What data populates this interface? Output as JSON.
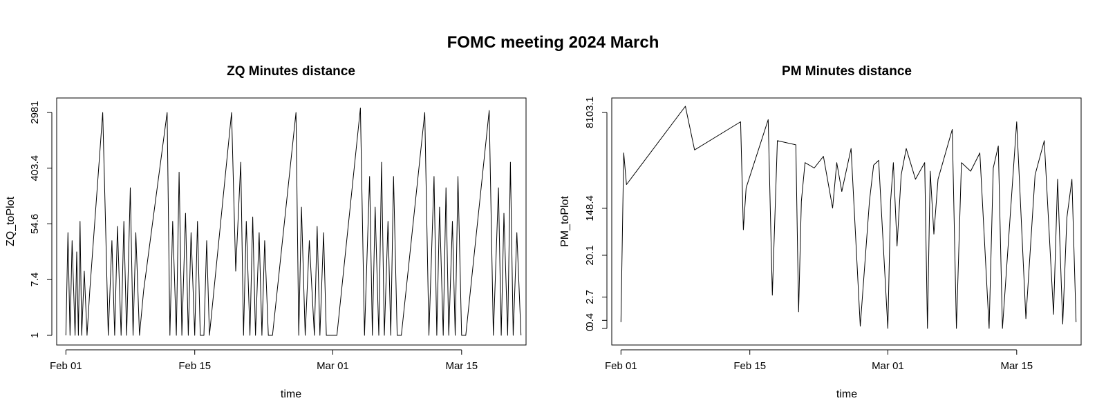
{
  "main_title": "FOMC meeting 2024 March",
  "chart_data": [
    {
      "type": "line",
      "title": "ZQ Minutes distance",
      "xlabel": "time",
      "ylabel": "ZQ_toPlot",
      "y_scale": "log",
      "ylim": [
        1,
        2981
      ],
      "xlim": [
        "2024-01-31",
        "2024-03-22"
      ],
      "grid": false,
      "x_ticks": [
        {
          "date": "2024-02-01",
          "label": "Feb 01"
        },
        {
          "date": "2024-02-15",
          "label": "Feb 15"
        },
        {
          "date": "2024-03-01",
          "label": "Mar 01"
        },
        {
          "date": "2024-03-15",
          "label": "Mar 15"
        }
      ],
      "y_ticks": [
        {
          "value": 1,
          "label": "1"
        },
        {
          "value": 7.4,
          "label": "7.4"
        },
        {
          "value": 54.6,
          "label": "54.6"
        },
        {
          "value": 403.4,
          "label": "403.4"
        },
        {
          "value": 2981,
          "label": "2981"
        }
      ],
      "series": [
        {
          "x": [
            "2024-02-01",
            "2024-02-01",
            "2024-02-01",
            "2024-02-01",
            "2024-02-02",
            "2024-02-02",
            "2024-02-02",
            "2024-02-02",
            "2024-02-02",
            "2024-02-03",
            "2024-02-03",
            "2024-02-03",
            "2024-02-05",
            "2024-02-05",
            "2024-02-05",
            "2024-02-06",
            "2024-02-06",
            "2024-02-06",
            "2024-02-07",
            "2024-02-07",
            "2024-02-07",
            "2024-02-08",
            "2024-02-08",
            "2024-02-08",
            "2024-02-09",
            "2024-02-09",
            "2024-02-12",
            "2024-02-12",
            "2024-02-12",
            "2024-02-13",
            "2024-02-13",
            "2024-02-13",
            "2024-02-14",
            "2024-02-14",
            "2024-02-14",
            "2024-02-15",
            "2024-02-15",
            "2024-02-15",
            "2024-02-16",
            "2024-02-16",
            "2024-02-16",
            "2024-02-19",
            "2024-02-19",
            "2024-02-20",
            "2024-02-20",
            "2024-02-20",
            "2024-02-21",
            "2024-02-21",
            "2024-02-21",
            "2024-02-22",
            "2024-02-22",
            "2024-02-22",
            "2024-02-23",
            "2024-02-23",
            "2024-02-26",
            "2024-02-26",
            "2024-02-26",
            "2024-02-27",
            "2024-02-27",
            "2024-02-28",
            "2024-02-28",
            "2024-02-28",
            "2024-02-29",
            "2024-02-29",
            "2024-02-29",
            "2024-03-01",
            "2024-03-01",
            "2024-03-04",
            "2024-03-04",
            "2024-03-05",
            "2024-03-05",
            "2024-03-05",
            "2024-03-06",
            "2024-03-06",
            "2024-03-06",
            "2024-03-07",
            "2024-03-07",
            "2024-03-07",
            "2024-03-08",
            "2024-03-08",
            "2024-03-11",
            "2024-03-11",
            "2024-03-12",
            "2024-03-12",
            "2024-03-12",
            "2024-03-13",
            "2024-03-13",
            "2024-03-13",
            "2024-03-14",
            "2024-03-14",
            "2024-03-14",
            "2024-03-15",
            "2024-03-15",
            "2024-03-18",
            "2024-03-18",
            "2024-03-19",
            "2024-03-19",
            "2024-03-19",
            "2024-03-20",
            "2024-03-20",
            "2024-03-20",
            "2024-03-21",
            "2024-03-21"
          ],
          "values": [
            1,
            40,
            1,
            30,
            1,
            20,
            1,
            60,
            1,
            10,
            1,
            5,
            2981,
            60,
            1,
            30,
            1,
            50,
            1,
            60,
            1,
            200,
            1,
            40,
            1,
            5,
            2981,
            1,
            60,
            1,
            350,
            1,
            80,
            1,
            40,
            1,
            60,
            1,
            1,
            30,
            1,
            2981,
            10,
            500,
            1,
            60,
            1,
            70,
            1,
            40,
            1,
            30,
            1,
            1,
            2981,
            1,
            100,
            1,
            30,
            1,
            50,
            1,
            40,
            1,
            1,
            1,
            1,
            3500,
            1,
            300,
            1,
            100,
            1,
            500,
            1,
            60,
            1,
            300,
            1,
            1,
            2981,
            1,
            300,
            1,
            100,
            1,
            200,
            1,
            60,
            1,
            300,
            1,
            1,
            3200,
            1,
            200,
            1,
            80,
            1,
            500,
            1,
            40,
            1
          ]
        }
      ]
    },
    {
      "type": "line",
      "title": "PM Minutes distance",
      "xlabel": "time",
      "ylabel": "PM_toPlot",
      "y_scale": "log1p",
      "ylim": [
        0,
        8103.1
      ],
      "xlim": [
        "2024-01-31",
        "2024-03-22"
      ],
      "grid": false,
      "x_ticks": [
        {
          "date": "2024-02-01",
          "label": "Feb 01"
        },
        {
          "date": "2024-02-15",
          "label": "Feb 15"
        },
        {
          "date": "2024-03-01",
          "label": "Mar 01"
        },
        {
          "date": "2024-03-15",
          "label": "Mar 15"
        }
      ],
      "y_ticks": [
        {
          "value": 0,
          "label": "0"
        },
        {
          "value": 0.4,
          "label": "0.4"
        },
        {
          "value": 2.7,
          "label": "2.7"
        },
        {
          "value": 20.1,
          "label": "20.1"
        },
        {
          "value": 148.4,
          "label": "148.4"
        },
        {
          "value": 8103.1,
          "label": "8103.1"
        }
      ],
      "series": [
        {
          "x": [
            "2024-02-01",
            "2024-02-01",
            "2024-02-01",
            "2024-02-08",
            "2024-02-09",
            "2024-02-14",
            "2024-02-14",
            "2024-02-14",
            "2024-02-17",
            "2024-02-17",
            "2024-02-18",
            "2024-02-20",
            "2024-02-20",
            "2024-02-20",
            "2024-02-21",
            "2024-02-22",
            "2024-02-23",
            "2024-02-24",
            "2024-02-24",
            "2024-02-25",
            "2024-02-26",
            "2024-02-27",
            "2024-02-28",
            "2024-02-28",
            "2024-02-29",
            "2024-03-01",
            "2024-03-01",
            "2024-03-01",
            "2024-03-02",
            "2024-03-02",
            "2024-03-03",
            "2024-03-04",
            "2024-03-05",
            "2024-03-05",
            "2024-03-05",
            "2024-03-06",
            "2024-03-06",
            "2024-03-08",
            "2024-03-08",
            "2024-03-09",
            "2024-03-10",
            "2024-03-11",
            "2024-03-12",
            "2024-03-12",
            "2024-03-13",
            "2024-03-13",
            "2024-03-15",
            "2024-03-16",
            "2024-03-17",
            "2024-03-18",
            "2024-03-19",
            "2024-03-19",
            "2024-03-20",
            "2024-03-20",
            "2024-03-21",
            "2024-03-21"
          ],
          "values": [
            0.3,
            1500,
            400,
            10500,
            1700,
            5500,
            60,
            350,
            6000,
            3,
            2500,
            2100,
            1,
            200,
            1000,
            800,
            1300,
            150,
            1000,
            300,
            1800,
            0.1,
            200,
            900,
            1100,
            0,
            200,
            1000,
            30,
            600,
            1800,
            500,
            1000,
            0,
            700,
            50,
            500,
            4000,
            0,
            1000,
            700,
            1500,
            0,
            800,
            2000,
            0,
            5500,
            0.5,
            600,
            2500,
            0.8,
            500,
            0.2,
            100,
            500,
            0.3
          ]
        }
      ]
    }
  ]
}
